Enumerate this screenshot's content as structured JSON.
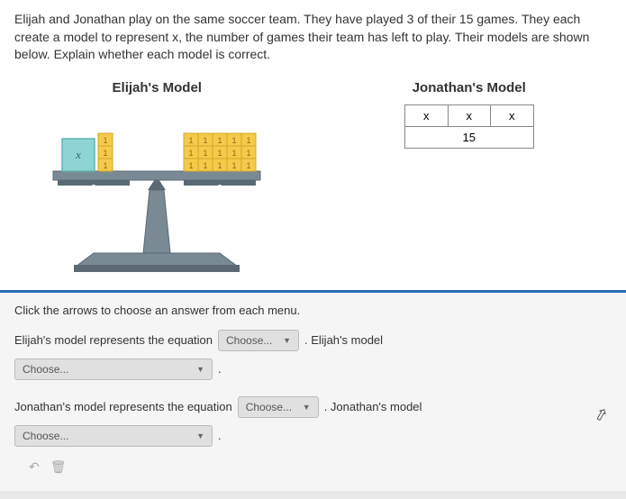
{
  "problem": {
    "text": "Elijah and Jonathan play on the same soccer team. They have played 3 of their 15 games. They each create a model to represent x, the number of games their team has left to play. Their models are shown below. Explain whether each model is correct."
  },
  "elijah": {
    "title": "Elijah's Model",
    "left_block": {
      "label": "x",
      "fill": "#8fd4d4",
      "stroke": "#5fb5b5"
    },
    "left_units": {
      "count": 3,
      "label": "1",
      "fill": "#f5c94a",
      "stroke": "#d4a82a"
    },
    "right_units": {
      "rows": 3,
      "cols": 5,
      "label": "1",
      "fill": "#f5c94a",
      "stroke": "#d4a82a"
    },
    "balance_color": "#7a8a94",
    "balance_dark": "#5a6a74"
  },
  "jonathan": {
    "title": "Jonathan's Model",
    "top_row": [
      "x",
      "x",
      "x"
    ],
    "bottom_row": "15"
  },
  "answer": {
    "instruction": "Click the arrows to choose an answer from each menu.",
    "line1_prefix": "Elijah's model represents the equation",
    "line1_suffix": ". Elijah's model",
    "line2_prefix": "Jonathan's model represents the equation",
    "line2_suffix": ". Jonathan's model",
    "choose_label": "Choose..."
  }
}
